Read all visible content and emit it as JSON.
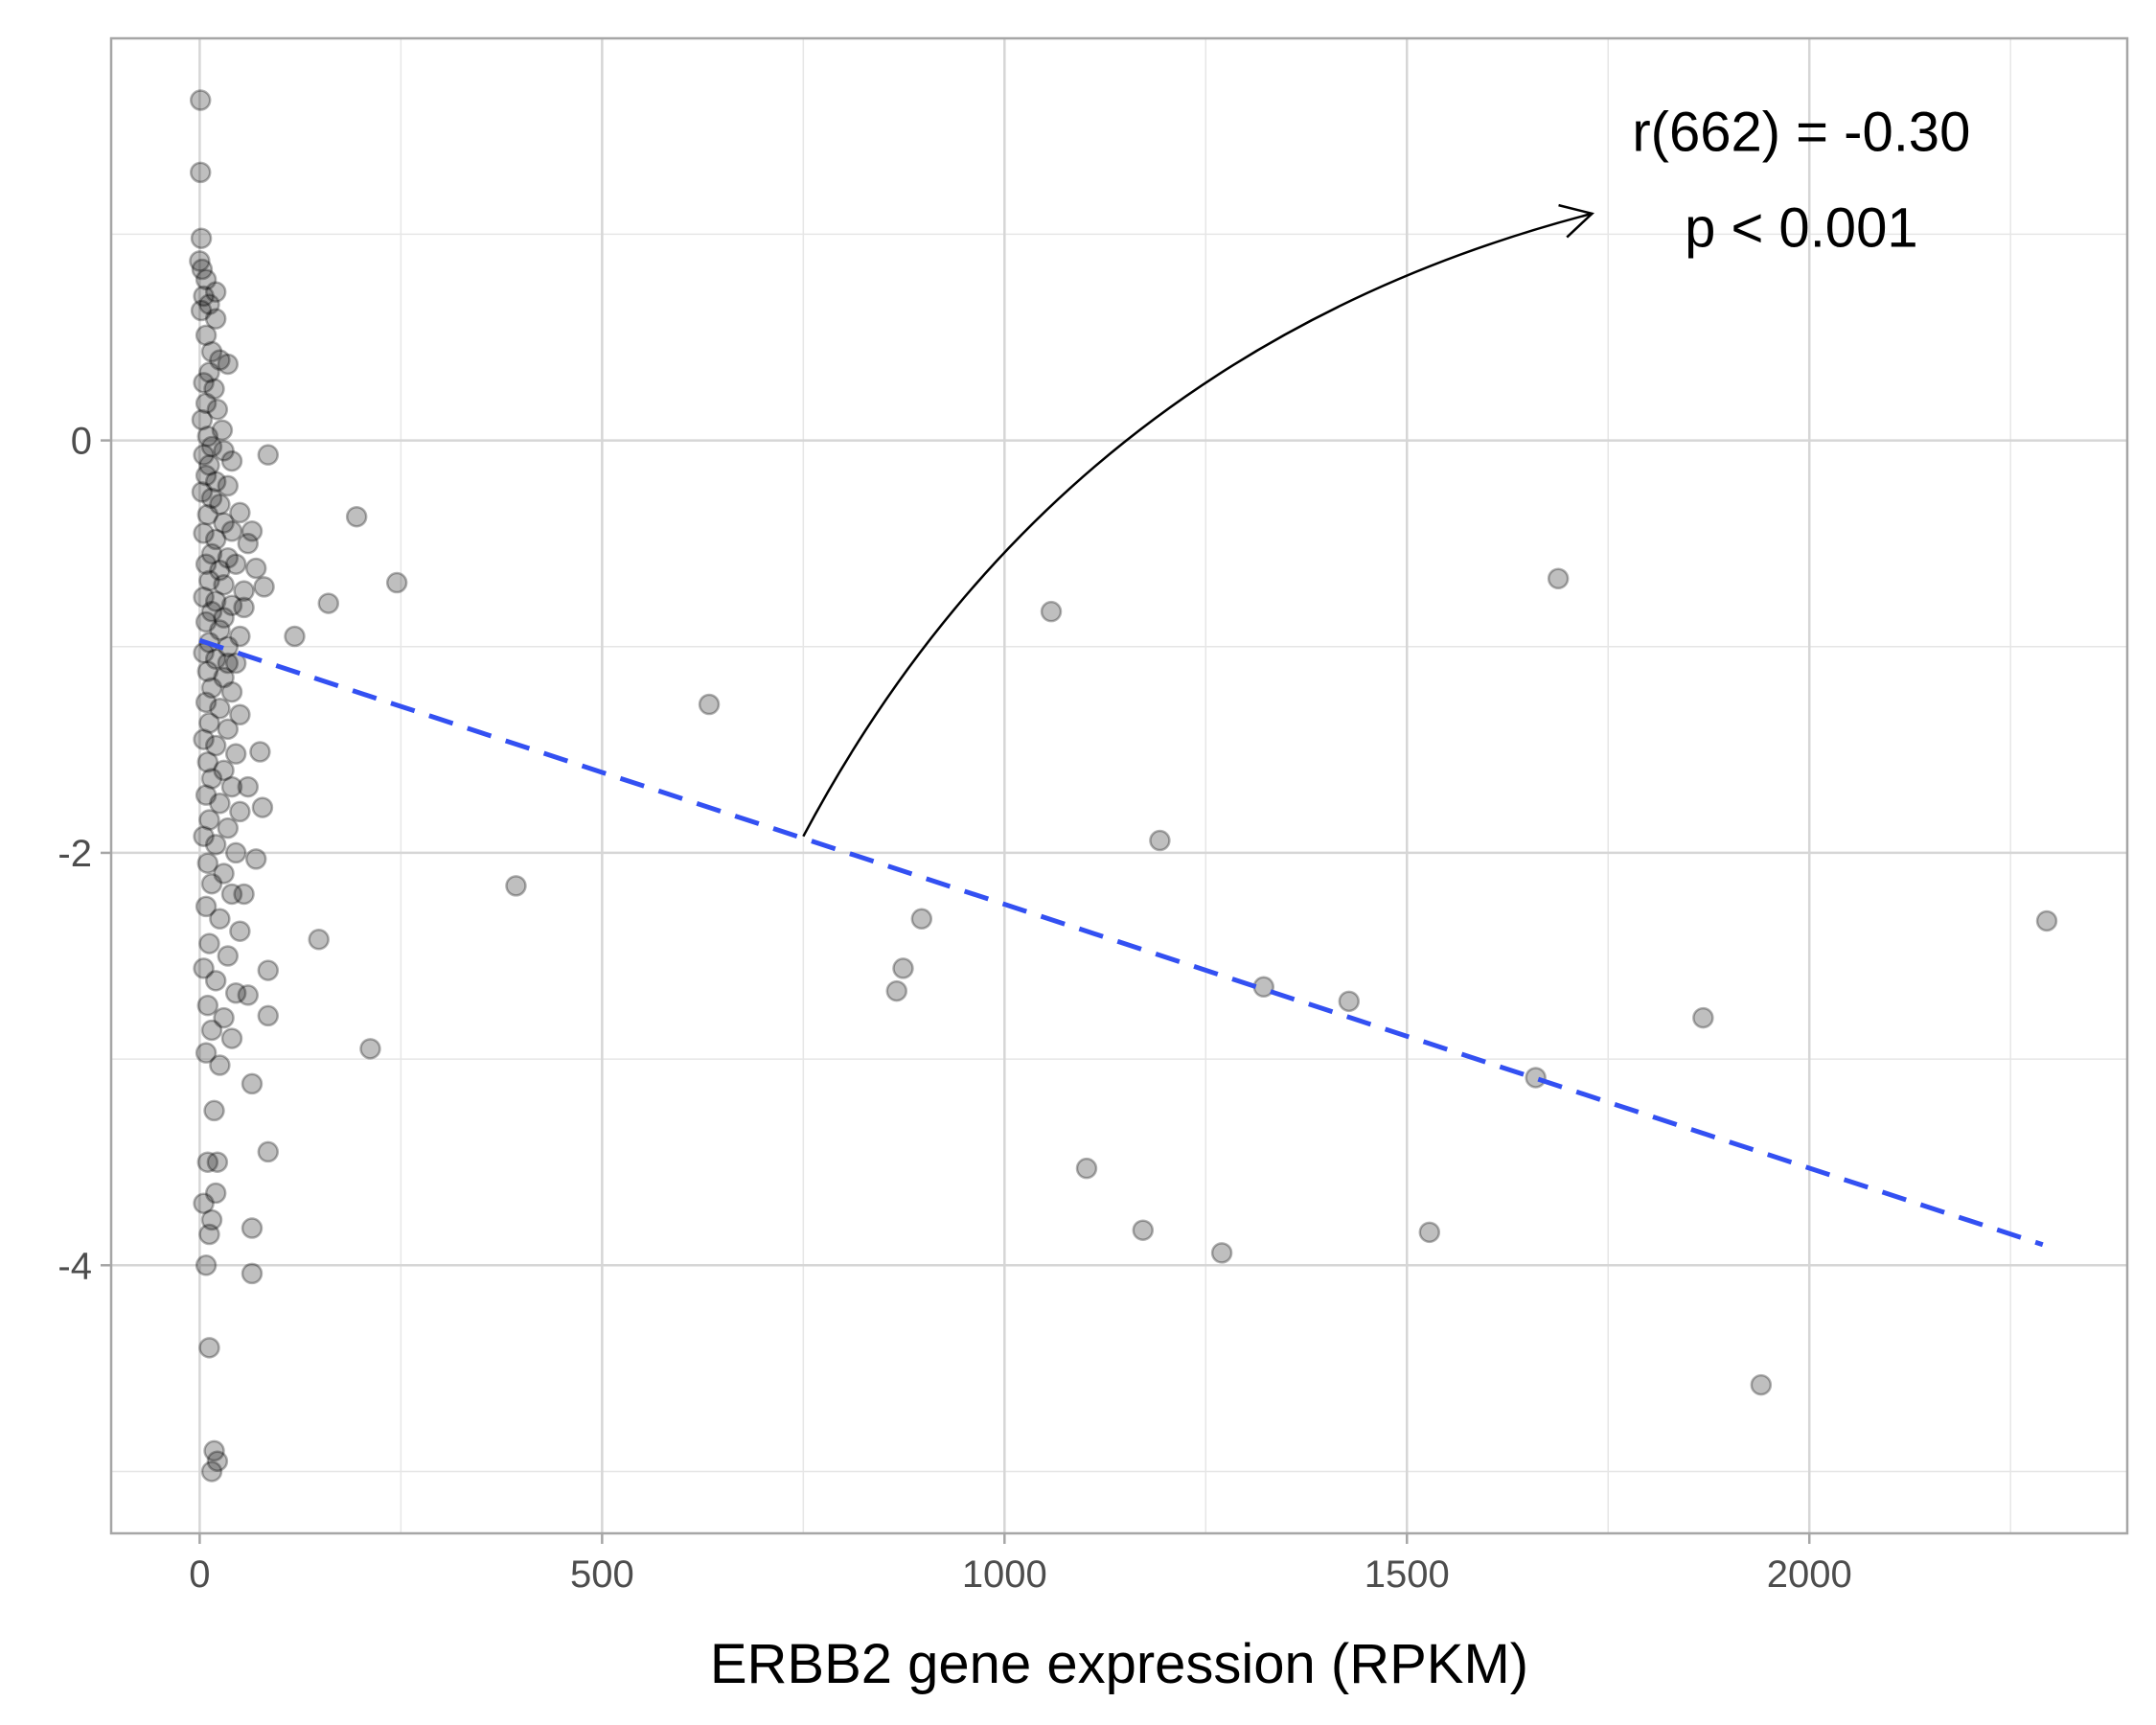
{
  "chart_data": {
    "type": "scatter",
    "title": "",
    "xlabel": "ERBB2 gene expression (RPKM)",
    "ylabel": "",
    "xlim": [
      -110,
      2395
    ],
    "ylim": [
      -5.3,
      1.95
    ],
    "x_ticks": [
      0,
      500,
      1000,
      1500,
      2000
    ],
    "x_tick_labels": [
      "0",
      "500",
      "1000",
      "1500",
      "2000"
    ],
    "y_ticks": [
      0,
      -2,
      -4
    ],
    "y_tick_labels": [
      "0",
      "-2",
      "-4"
    ],
    "x_minor_grid": [
      250,
      750,
      1250,
      1750,
      2250
    ],
    "y_minor_grid": [
      1,
      -1,
      -3,
      -5
    ],
    "grid": true,
    "point_color": "#000000",
    "point_opacity": 0.25,
    "regression_line": {
      "x": [
        0,
        2290
      ],
      "y": [
        -0.97,
        -3.9
      ],
      "color": "#3350f2",
      "dashed": true
    },
    "annotation": {
      "lines": [
        "r(662) = -0.30",
        "p < 0.001"
      ],
      "text_position": [
        1990,
        1.33
      ],
      "arrow_from": [
        750,
        -1.92
      ],
      "arrow_to": [
        1730,
        1.1
      ]
    },
    "points": [
      [
        1,
        1.65
      ],
      [
        1,
        1.3
      ],
      [
        2,
        0.98
      ],
      [
        0,
        0.87
      ],
      [
        3,
        0.83
      ],
      [
        8,
        0.78
      ],
      [
        20,
        0.72
      ],
      [
        5,
        0.7
      ],
      [
        2,
        0.63
      ],
      [
        12,
        0.66
      ],
      [
        20,
        0.59
      ],
      [
        8,
        0.51
      ],
      [
        15,
        0.43
      ],
      [
        35,
        0.37
      ],
      [
        25,
        0.39
      ],
      [
        12,
        0.33
      ],
      [
        5,
        0.28
      ],
      [
        18,
        0.25
      ],
      [
        8,
        0.18
      ],
      [
        22,
        0.15
      ],
      [
        3,
        0.1
      ],
      [
        28,
        0.05
      ],
      [
        10,
        0.02
      ],
      [
        15,
        -0.03
      ],
      [
        5,
        -0.07
      ],
      [
        30,
        -0.05
      ],
      [
        12,
        -0.12
      ],
      [
        40,
        -0.1
      ],
      [
        8,
        -0.17
      ],
      [
        20,
        -0.2
      ],
      [
        35,
        -0.22
      ],
      [
        3,
        -0.25
      ],
      [
        15,
        -0.28
      ],
      [
        25,
        -0.31
      ],
      [
        50,
        -0.35
      ],
      [
        10,
        -0.36
      ],
      [
        30,
        -0.4
      ],
      [
        5,
        -0.45
      ],
      [
        40,
        -0.44
      ],
      [
        20,
        -0.48
      ],
      [
        60,
        -0.5
      ],
      [
        15,
        -0.55
      ],
      [
        35,
        -0.57
      ],
      [
        8,
        -0.6
      ],
      [
        25,
        -0.63
      ],
      [
        45,
        -0.6
      ],
      [
        12,
        -0.68
      ],
      [
        30,
        -0.7
      ],
      [
        55,
        -0.73
      ],
      [
        5,
        -0.76
      ],
      [
        20,
        -0.78
      ],
      [
        40,
        -0.8
      ],
      [
        15,
        -0.83
      ],
      [
        30,
        -0.86
      ],
      [
        8,
        -0.88
      ],
      [
        25,
        -0.92
      ],
      [
        50,
        -0.95
      ],
      [
        12,
        -0.98
      ],
      [
        35,
        -1.0
      ],
      [
        5,
        -1.03
      ],
      [
        20,
        -1.06
      ],
      [
        45,
        -1.08
      ],
      [
        10,
        -1.12
      ],
      [
        30,
        -1.15
      ],
      [
        15,
        -1.2
      ],
      [
        40,
        -1.22
      ],
      [
        8,
        -1.27
      ],
      [
        25,
        -1.3
      ],
      [
        50,
        -1.33
      ],
      [
        12,
        -1.37
      ],
      [
        35,
        -1.4
      ],
      [
        5,
        -1.45
      ],
      [
        20,
        -1.48
      ],
      [
        45,
        -1.52
      ],
      [
        10,
        -1.56
      ],
      [
        30,
        -1.6
      ],
      [
        15,
        -1.64
      ],
      [
        40,
        -1.68
      ],
      [
        8,
        -1.72
      ],
      [
        25,
        -1.76
      ],
      [
        50,
        -1.8
      ],
      [
        12,
        -1.84
      ],
      [
        35,
        -1.88
      ],
      [
        5,
        -1.92
      ],
      [
        20,
        -1.96
      ],
      [
        45,
        -2.0
      ],
      [
        10,
        -2.05
      ],
      [
        30,
        -2.1
      ],
      [
        15,
        -2.15
      ],
      [
        40,
        -2.2
      ],
      [
        8,
        -2.26
      ],
      [
        25,
        -2.32
      ],
      [
        50,
        -2.38
      ],
      [
        12,
        -2.44
      ],
      [
        35,
        -2.5
      ],
      [
        5,
        -2.56
      ],
      [
        20,
        -2.62
      ],
      [
        45,
        -2.68
      ],
      [
        10,
        -2.74
      ],
      [
        30,
        -2.8
      ],
      [
        15,
        -2.86
      ],
      [
        40,
        -2.9
      ],
      [
        8,
        -2.97
      ],
      [
        25,
        -3.03
      ],
      [
        18,
        -3.25
      ],
      [
        22,
        -3.5
      ],
      [
        10,
        -3.5
      ],
      [
        20,
        -3.65
      ],
      [
        5,
        -3.7
      ],
      [
        15,
        -3.78
      ],
      [
        12,
        -3.85
      ],
      [
        8,
        -4.0
      ],
      [
        12,
        -4.4
      ],
      [
        18,
        -4.9
      ],
      [
        22,
        -4.95
      ],
      [
        15,
        -5.0
      ],
      [
        85,
        -0.07
      ],
      [
        65,
        -0.44
      ],
      [
        70,
        -0.62
      ],
      [
        80,
        -0.71
      ],
      [
        55,
        -0.81
      ],
      [
        35,
        -1.08
      ],
      [
        75,
        -1.51
      ],
      [
        60,
        -1.68
      ],
      [
        78,
        -1.78
      ],
      [
        70,
        -2.03
      ],
      [
        55,
        -2.2
      ],
      [
        85,
        -2.57
      ],
      [
        60,
        -2.69
      ],
      [
        85,
        -2.79
      ],
      [
        65,
        -3.12
      ],
      [
        85,
        -3.45
      ],
      [
        65,
        -3.82
      ],
      [
        65,
        -4.04
      ],
      [
        195,
        -0.37
      ],
      [
        245,
        -0.69
      ],
      [
        160,
        -0.79
      ],
      [
        118,
        -0.95
      ],
      [
        148,
        -2.42
      ],
      [
        212,
        -2.95
      ],
      [
        393,
        -2.16
      ],
      [
        633,
        -1.28
      ],
      [
        1058,
        -0.83
      ],
      [
        1688,
        -0.67
      ],
      [
        1193,
        -1.94
      ],
      [
        897,
        -2.32
      ],
      [
        874,
        -2.56
      ],
      [
        866,
        -2.67
      ],
      [
        1322,
        -2.65
      ],
      [
        1428,
        -2.72
      ],
      [
        1660,
        -3.09
      ],
      [
        1868,
        -2.8
      ],
      [
        2295,
        -2.33
      ],
      [
        1102,
        -3.53
      ],
      [
        1172,
        -3.83
      ],
      [
        1270,
        -3.94
      ],
      [
        1528,
        -3.84
      ],
      [
        1940,
        -4.58
      ]
    ]
  }
}
